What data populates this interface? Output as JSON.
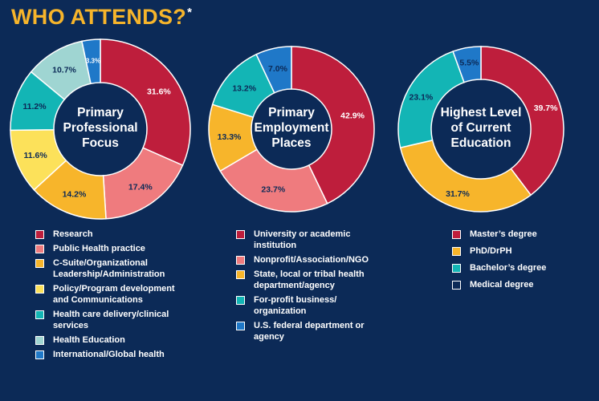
{
  "header": {
    "title": "WHO ATTENDS?",
    "asterisk": "*"
  },
  "chart_data": [
    {
      "type": "pie",
      "title": "Primary Professional Focus",
      "center_lines": [
        "Primary",
        "Professional",
        "Focus"
      ],
      "categories": [
        "Research",
        "Public Health practice",
        "C-Suite/Organizational Leadership/Administration",
        "Policy/Program development and Communications",
        "Health care delivery/clinical services",
        "Health Education",
        "International/Global health"
      ],
      "legend_lines": [
        [
          "Research"
        ],
        [
          "Public Health practice"
        ],
        [
          "C-Suite/Organizational",
          "Leadership/Administration"
        ],
        [
          "Policy/Program development",
          "and Communications"
        ],
        [
          "Health care delivery/clinical",
          "services"
        ],
        [
          "Health Education"
        ],
        [
          "International/Global health"
        ]
      ],
      "values": [
        31.6,
        17.4,
        14.2,
        11.6,
        11.2,
        10.7,
        3.3
      ],
      "labels": [
        "31.6%",
        "17.4%",
        "14.2%",
        "11.6%",
        "11.2%",
        "10.7%",
        "3.3%"
      ],
      "colors": [
        "#be1e3c",
        "#ef7b7e",
        "#f7b52b",
        "#fce15a",
        "#13b5b5",
        "#9fd5d2",
        "#1f78c8"
      ],
      "label_colors": [
        "#ffffff",
        "#0c2a57",
        "#0c2a57",
        "#0c2a57",
        "#0c2a57",
        "#0c2a57",
        "#ffffff"
      ]
    },
    {
      "type": "pie",
      "title": "Primary Employment Places",
      "center_lines": [
        "Primary",
        "Employment",
        "Places"
      ],
      "categories": [
        "University or academic institution",
        "Nonprofit/Association/NGO",
        "State, local or tribal health department/agency",
        "For-profit business/organization",
        "U.S. federal department or agency"
      ],
      "legend_lines": [
        [
          "University or academic",
          "institution"
        ],
        [
          "Nonprofit/Association/NGO"
        ],
        [
          "State, local or tribal health",
          "department/agency"
        ],
        [
          "For-profit business/",
          "organization"
        ],
        [
          "U.S. federal department or",
          "agency"
        ]
      ],
      "values": [
        42.9,
        23.7,
        13.3,
        13.2,
        7.0
      ],
      "labels": [
        "42.9%",
        "23.7%",
        "13.3%",
        "13.2%",
        "7.0%"
      ],
      "colors": [
        "#be1e3c",
        "#ef7b7e",
        "#f7b52b",
        "#13b5b5",
        "#1f78c8"
      ],
      "label_colors": [
        "#ffffff",
        "#0c2a57",
        "#0c2a57",
        "#0c2a57",
        "#0c2a57"
      ]
    },
    {
      "type": "pie",
      "title": "Highest Level of Current Education",
      "center_lines": [
        "Highest Level",
        "of Current",
        "Education"
      ],
      "categories": [
        "Master's degree",
        "PhD/DrPH",
        "Bachelor's degree",
        "Medical degree"
      ],
      "legend_lines": [
        [
          "Master’s degree"
        ],
        [
          "PhD/DrPH"
        ],
        [
          "Bachelor’s degree"
        ],
        [
          "Medical degree"
        ]
      ],
      "values": [
        39.7,
        31.7,
        23.1,
        5.5
      ],
      "labels": [
        "39.7%",
        "31.7%",
        "23.1%",
        "5.5%"
      ],
      "colors": [
        "#be1e3c",
        "#f7b52b",
        "#13b5b5",
        "#1f78c8"
      ],
      "legend_colors": [
        "#be1e3c",
        "#f7b52b",
        "#13b5b5",
        "#0c2a57"
      ],
      "label_colors": [
        "#ffffff",
        "#0c2a57",
        "#0c2a57",
        "#0c2a57"
      ]
    }
  ]
}
